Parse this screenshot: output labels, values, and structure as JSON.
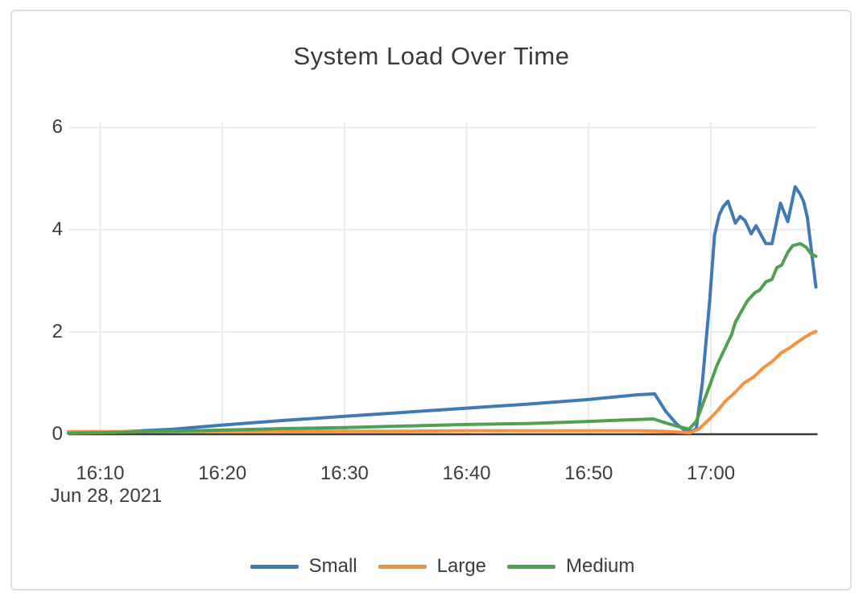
{
  "title": "System Load Over Time",
  "colors": {
    "grid": "#ebebeb",
    "zeroline": "#3a3a3a",
    "text": "#3c3c3c",
    "frame_border": "#dedede",
    "background": "#ffffff",
    "series_small": "#3f7ab5",
    "series_large": "#f7913e",
    "series_medium": "#4fa14f"
  },
  "chart_data": {
    "type": "line",
    "title": "System Load Over Time",
    "xlabel": "",
    "ylabel": "",
    "grid": true,
    "legend_position": "bottom-center",
    "x_axis": {
      "date_label": "Jun 28, 2021",
      "tick_labels": [
        "16:10",
        "16:20",
        "16:30",
        "16:40",
        "16:50",
        "17:00"
      ],
      "tick_minutes": [
        10,
        20,
        30,
        40,
        50,
        60
      ],
      "range_minutes": [
        7.4,
        68.6
      ]
    },
    "y_axis": {
      "tick_labels": [
        "0",
        "2",
        "4",
        "6"
      ],
      "tick_values": [
        0,
        2,
        4,
        6
      ],
      "range": [
        0,
        6.1
      ]
    },
    "series": [
      {
        "name": "Small",
        "color": "#3f7ab5",
        "points": [
          [
            7.4,
            0.02
          ],
          [
            12,
            0.05
          ],
          [
            16,
            0.1
          ],
          [
            20,
            0.18
          ],
          [
            25,
            0.27
          ],
          [
            30,
            0.35
          ],
          [
            35,
            0.43
          ],
          [
            40,
            0.51
          ],
          [
            45,
            0.59
          ],
          [
            50,
            0.68
          ],
          [
            53.9,
            0.77
          ],
          [
            55.4,
            0.79
          ],
          [
            56.3,
            0.45
          ],
          [
            57.2,
            0.2
          ],
          [
            58.1,
            0.03
          ],
          [
            58.8,
            0.1
          ],
          [
            59.3,
            1.0
          ],
          [
            59.9,
            2.6
          ],
          [
            60.3,
            3.9
          ],
          [
            60.7,
            4.3
          ],
          [
            61.0,
            4.45
          ],
          [
            61.4,
            4.56
          ],
          [
            62.0,
            4.13
          ],
          [
            62.4,
            4.26
          ],
          [
            62.8,
            4.18
          ],
          [
            63.3,
            3.92
          ],
          [
            63.7,
            4.08
          ],
          [
            64.5,
            3.73
          ],
          [
            65.0,
            3.73
          ],
          [
            65.7,
            4.52
          ],
          [
            66.3,
            4.16
          ],
          [
            66.9,
            4.84
          ],
          [
            67.3,
            4.7
          ],
          [
            67.6,
            4.55
          ],
          [
            67.9,
            4.24
          ],
          [
            68.6,
            2.88
          ]
        ]
      },
      {
        "name": "Large",
        "color": "#f7913e",
        "points": [
          [
            7.4,
            0.05
          ],
          [
            12,
            0.05
          ],
          [
            16,
            0.05
          ],
          [
            20,
            0.06
          ],
          [
            25,
            0.06
          ],
          [
            30,
            0.06
          ],
          [
            35,
            0.06
          ],
          [
            40,
            0.07
          ],
          [
            45,
            0.07
          ],
          [
            50,
            0.07
          ],
          [
            54,
            0.07
          ],
          [
            56,
            0.06
          ],
          [
            57.5,
            0.04
          ],
          [
            58.3,
            0.03
          ],
          [
            59.0,
            0.1
          ],
          [
            59.9,
            0.3
          ],
          [
            60.5,
            0.45
          ],
          [
            61.2,
            0.65
          ],
          [
            61.9,
            0.8
          ],
          [
            62.7,
            1.0
          ],
          [
            63.5,
            1.12
          ],
          [
            64.3,
            1.3
          ],
          [
            65.0,
            1.42
          ],
          [
            65.8,
            1.6
          ],
          [
            66.4,
            1.68
          ],
          [
            67.1,
            1.8
          ],
          [
            67.7,
            1.9
          ],
          [
            68.2,
            1.97
          ],
          [
            68.6,
            2.01
          ]
        ]
      },
      {
        "name": "Medium",
        "color": "#4fa14f",
        "points": [
          [
            7.4,
            0.02
          ],
          [
            12,
            0.04
          ],
          [
            16,
            0.06
          ],
          [
            20,
            0.08
          ],
          [
            25,
            0.11
          ],
          [
            30,
            0.13
          ],
          [
            35,
            0.16
          ],
          [
            40,
            0.19
          ],
          [
            45,
            0.21
          ],
          [
            50,
            0.25
          ],
          [
            53,
            0.28
          ],
          [
            55.3,
            0.3
          ],
          [
            56.3,
            0.22
          ],
          [
            57.2,
            0.16
          ],
          [
            58.2,
            0.1
          ],
          [
            58.8,
            0.25
          ],
          [
            59.2,
            0.5
          ],
          [
            59.9,
            0.95
          ],
          [
            60.5,
            1.35
          ],
          [
            61.2,
            1.7
          ],
          [
            61.7,
            1.95
          ],
          [
            62.0,
            2.19
          ],
          [
            62.6,
            2.45
          ],
          [
            63.0,
            2.61
          ],
          [
            63.6,
            2.77
          ],
          [
            64.0,
            2.82
          ],
          [
            64.5,
            2.98
          ],
          [
            65.0,
            3.03
          ],
          [
            65.4,
            3.26
          ],
          [
            65.8,
            3.31
          ],
          [
            66.3,
            3.56
          ],
          [
            66.7,
            3.69
          ],
          [
            67.3,
            3.73
          ],
          [
            67.8,
            3.66
          ],
          [
            68.2,
            3.53
          ],
          [
            68.6,
            3.48
          ]
        ]
      }
    ]
  }
}
